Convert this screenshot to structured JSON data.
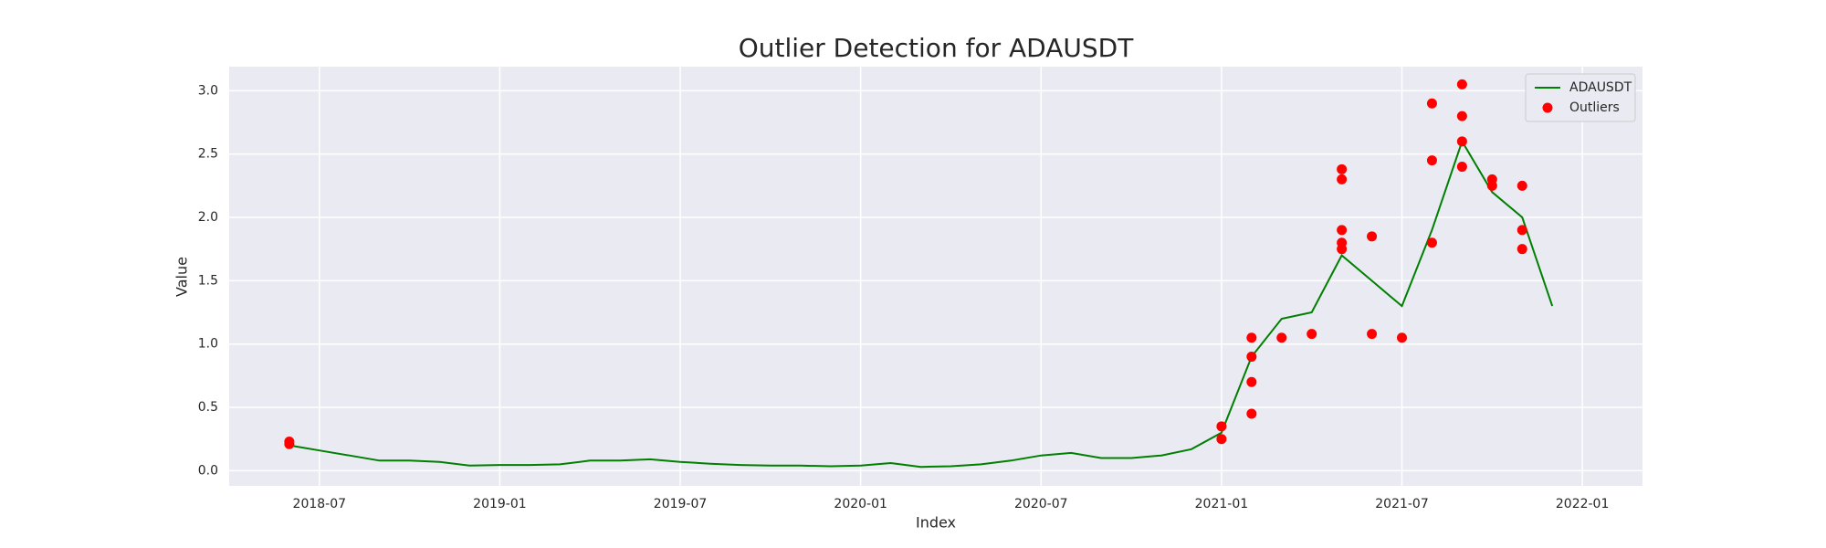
{
  "chart_data": {
    "type": "line",
    "title": "Outlier Detection for ADAUSDT",
    "x_label": "Index",
    "y_label": "Value",
    "xlim": [
      "2018-04",
      "2022-03"
    ],
    "xticks": [
      "2018-07",
      "2019-01",
      "2019-07",
      "2020-01",
      "2020-07",
      "2021-01",
      "2021-07",
      "2022-01"
    ],
    "ylim": [
      -0.12,
      3.19
    ],
    "yticks": [
      {
        "value": 0,
        "label": "0.0"
      },
      0.5,
      {
        "value": 1,
        "label": "1.0"
      },
      1.5,
      {
        "value": 2,
        "label": "2.0"
      },
      2.5,
      {
        "value": 3,
        "label": "3.0"
      }
    ],
    "grid": true,
    "legend": "upper right",
    "series": [
      {
        "name": "ADAUSDT",
        "type": "line",
        "color": "#008000",
        "x": [
          "2018-06",
          "2018-07",
          "2018-08",
          "2018-09",
          "2018-10",
          "2018-11",
          "2018-12",
          "2019-01",
          "2019-02",
          "2019-03",
          "2019-04",
          "2019-05",
          "2019-06",
          "2019-07",
          "2019-08",
          "2019-09",
          "2019-10",
          "2019-11",
          "2019-12",
          "2020-01",
          "2020-02",
          "2020-03",
          "2020-04",
          "2020-05",
          "2020-06",
          "2020-07",
          "2020-08",
          "2020-09",
          "2020-10",
          "2020-11",
          "2020-12",
          "2021-01",
          "2021-02",
          "2021-03",
          "2021-04",
          "2021-05",
          "2021-06",
          "2021-07",
          "2021-08",
          "2021-09",
          "2021-10",
          "2021-11",
          "2021-12"
        ],
        "values": [
          0.2,
          0.16,
          0.12,
          0.08,
          0.08,
          0.07,
          0.04,
          0.045,
          0.045,
          0.05,
          0.08,
          0.08,
          0.09,
          0.07,
          0.055,
          0.045,
          0.04,
          0.04,
          0.035,
          0.04,
          0.06,
          0.03,
          0.035,
          0.05,
          0.08,
          0.12,
          0.14,
          0.1,
          0.1,
          0.12,
          0.17,
          0.3,
          0.9,
          1.2,
          1.25,
          1.7,
          1.5,
          1.3,
          1.9,
          2.6,
          2.2,
          2.0,
          1.3
        ]
      },
      {
        "name": "Outliers",
        "type": "scatter",
        "color": "#ff0000",
        "x": [
          "2018-06",
          "2018-06",
          "2021-01",
          "2021-01",
          "2021-02",
          "2021-02",
          "2021-02",
          "2021-02",
          "2021-03",
          "2021-04",
          "2021-05",
          "2021-05",
          "2021-05",
          "2021-05",
          "2021-05",
          "2021-06",
          "2021-06",
          "2021-07",
          "2021-08",
          "2021-08",
          "2021-08",
          "2021-09",
          "2021-09",
          "2021-09",
          "2021-09",
          "2021-10",
          "2021-10",
          "2021-11",
          "2021-11",
          "2021-11"
        ],
        "values": [
          0.23,
          0.21,
          0.25,
          0.35,
          0.45,
          0.7,
          0.9,
          1.05,
          1.05,
          1.08,
          1.75,
          1.9,
          2.38,
          2.3,
          1.8,
          1.85,
          1.08,
          1.05,
          1.8,
          2.45,
          2.9,
          3.05,
          2.8,
          2.4,
          2.6,
          2.3,
          2.25,
          2.25,
          1.9,
          1.75
        ]
      }
    ]
  }
}
